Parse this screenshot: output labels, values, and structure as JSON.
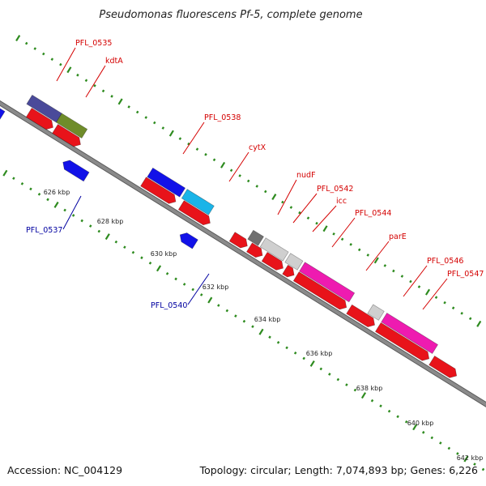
{
  "title": "Pseudomonas fluorescens Pf-5, complete genome",
  "accession": "Accession: NC_004129",
  "summary": "Topology: circular; Length: 7,074,893 bp; Genes: 6,226",
  "colors": {
    "backbone": "#8a8a8a",
    "tick_green": "#2e8b1f",
    "red_gene": "#e8131a",
    "blue_gene": "#1212e8",
    "olive_gene": "#6f8c2a",
    "cyan_gene": "#1ab4e8",
    "gray_gene": "#cfcfcf",
    "darkgray_gene": "#707070",
    "magenta_gene": "#ee1bb0",
    "slate_gene": "#4a4a9a",
    "label_red": "#d40000",
    "label_blue": "#0000a0"
  },
  "scale_labels": [
    "626 kbp",
    "628 kbp",
    "630 kbp",
    "632 kbp",
    "634 kbp",
    "636 kbp",
    "638 kbp",
    "640 kbp",
    "642 kbp"
  ],
  "gene_labels": [
    {
      "text": "PFL_0535",
      "color": "red"
    },
    {
      "text": "kdtA",
      "color": "red"
    },
    {
      "text": "PFL_0538",
      "color": "red"
    },
    {
      "text": "cytX",
      "color": "red"
    },
    {
      "text": "nudF",
      "color": "red"
    },
    {
      "text": "PFL_0542",
      "color": "red"
    },
    {
      "text": "icc",
      "color": "red"
    },
    {
      "text": "PFL_0544",
      "color": "red"
    },
    {
      "text": "parE",
      "color": "red"
    },
    {
      "text": "PFL_0546",
      "color": "red"
    },
    {
      "text": "PFL_0547",
      "color": "red"
    },
    {
      "text": "PFL_0537",
      "color": "blue"
    },
    {
      "text": "PFL_0540",
      "color": "blue"
    }
  ]
}
